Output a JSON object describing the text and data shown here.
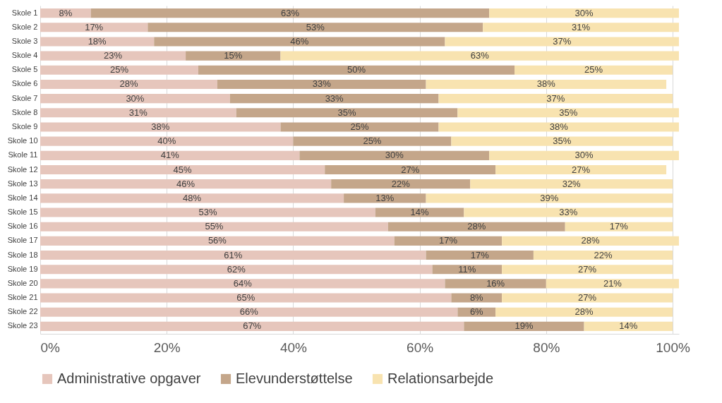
{
  "chart_data": {
    "type": "bar",
    "orientation": "horizontal",
    "stacked": true,
    "categories": [
      "Skole 1",
      "Skole 2",
      "Skole 3",
      "Skole 4",
      "Skole 5",
      "Skole 6",
      "Skole 7",
      "Skole 8",
      "Skole 9",
      "Skole 10",
      "Skole 11",
      "Skole 12",
      "Skole 13",
      "Skole 14",
      "Skole 15",
      "Skole 16",
      "Skole 17",
      "Skole 18",
      "Skole 19",
      "Skole 20",
      "Skole 21",
      "Skole 22",
      "Skole 23"
    ],
    "series": [
      {
        "name": "Administrative opgaver",
        "color": "#e6c6bc",
        "values": [
          8,
          17,
          18,
          23,
          25,
          28,
          30,
          31,
          38,
          40,
          41,
          45,
          46,
          48,
          53,
          55,
          56,
          61,
          62,
          64,
          65,
          66,
          67
        ],
        "value_labels": [
          "8%",
          "17%",
          "18%",
          "23%",
          "25%",
          "28%",
          "30%",
          "31%",
          "38%",
          "40%",
          "41%",
          "45%",
          "46%",
          "48%",
          "53%",
          "55%",
          "56%",
          "61%",
          "62%",
          "64%",
          "65%",
          "66%",
          "67%"
        ]
      },
      {
        "name": "Elevunderstøttelse",
        "color": "#c4a68a",
        "values": [
          63,
          53,
          46,
          15,
          50,
          33,
          33,
          35,
          25,
          25,
          30,
          27,
          22,
          13,
          14,
          28,
          17,
          17,
          11,
          16,
          8,
          6,
          19
        ],
        "value_labels": [
          "63%",
          "53%",
          "46%",
          "15%",
          "50%",
          "33%",
          "33%",
          "35%",
          "25%",
          "25%",
          "30%",
          "27%",
          "22%",
          "13%",
          "14%",
          "28%",
          "17%",
          "17%",
          "11%",
          "16%",
          "8%",
          "6%",
          "19%"
        ]
      },
      {
        "name": "Relationsarbejde",
        "color": "#f8e3b0",
        "values": [
          30,
          31,
          37,
          63,
          25,
          38,
          37,
          35,
          38,
          35,
          30,
          27,
          32,
          39,
          33,
          17,
          28,
          22,
          27,
          21,
          27,
          28,
          14
        ],
        "value_labels": [
          "30%",
          "31%",
          "37%",
          "63%",
          "25%",
          "38%",
          "37%",
          "35%",
          "38%",
          "35%",
          "30%",
          "27%",
          "32%",
          "39%",
          "33%",
          "17%",
          "28%",
          "22%",
          "27%",
          "21%",
          "27%",
          "28%",
          "14%"
        ]
      }
    ],
    "xlim": [
      0,
      101
    ],
    "xticks": [
      {
        "value": 0,
        "label": "0%"
      },
      {
        "value": 20,
        "label": "20%"
      },
      {
        "value": 40,
        "label": "40%"
      },
      {
        "value": 60,
        "label": "60%"
      },
      {
        "value": 80,
        "label": "80%"
      },
      {
        "value": 100,
        "label": "100%"
      }
    ],
    "grid": "x",
    "legend": "bottom"
  }
}
